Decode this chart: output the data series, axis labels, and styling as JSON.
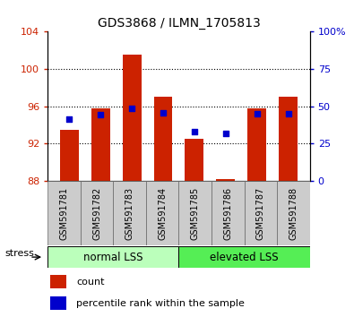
{
  "title": "GDS3868 / ILMN_1705813",
  "samples": [
    "GSM591781",
    "GSM591782",
    "GSM591783",
    "GSM591784",
    "GSM591785",
    "GSM591786",
    "GSM591787",
    "GSM591788"
  ],
  "bar_values": [
    93.5,
    95.8,
    101.5,
    97.0,
    92.5,
    88.2,
    95.8,
    97.0
  ],
  "bar_base": 88.0,
  "blue_dot_values": [
    94.6,
    95.1,
    95.8,
    95.3,
    93.3,
    93.1,
    95.2,
    95.2
  ],
  "ylim_left": [
    88,
    104
  ],
  "ylim_right": [
    0,
    100
  ],
  "yticks_left": [
    88,
    92,
    96,
    100,
    104
  ],
  "yticks_right": [
    0,
    25,
    50,
    75,
    100
  ],
  "bar_color": "#cc2200",
  "dot_color": "#0000cc",
  "group1_label": "normal LSS",
  "group2_label": "elevated LSS",
  "group1_color": "#bbffbb",
  "group2_color": "#55ee55",
  "stress_label": "stress",
  "legend_count": "count",
  "legend_percentile": "percentile rank within the sample",
  "left_tick_color": "#cc2200",
  "right_tick_color": "#0000cc",
  "bar_width": 0.6,
  "bg_color": "#ffffff",
  "n_group1": 4,
  "n_group2": 4
}
